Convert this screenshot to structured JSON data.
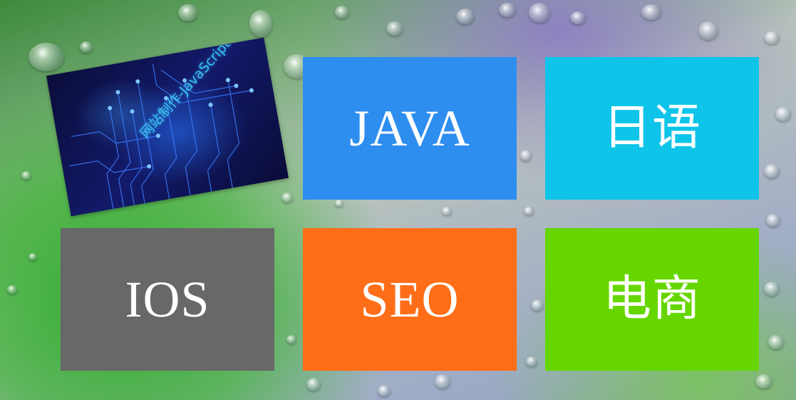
{
  "tiles": {
    "java": {
      "label": "JAVA",
      "color": "#2d8ef0"
    },
    "japanese": {
      "label": "日语",
      "color": "#0ec4e8"
    },
    "ios": {
      "label": "IOS",
      "color": "#686868"
    },
    "seo": {
      "label": "SEO",
      "color": "#fe6d17"
    },
    "ecommerce": {
      "label": "电商",
      "color": "#66d600"
    }
  },
  "featured_image": {
    "caption": "网站制作-JavaScript",
    "icon": "circuit-board-image"
  },
  "background": {
    "icon": "raindrops-on-glass-wallpaper"
  }
}
